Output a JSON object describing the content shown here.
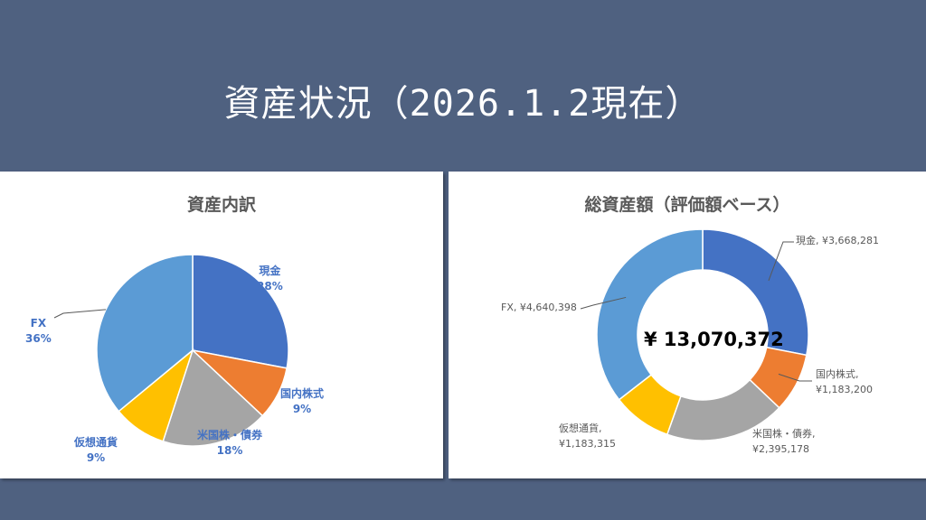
{
  "slide": {
    "title": "資産状況（2026.1.2現在）"
  },
  "colors": {
    "background": "#4f6180",
    "panel": "#ffffff",
    "label_blue": "#4472c4",
    "label_gray": "#595959",
    "leader": "#595959"
  },
  "chart_data": [
    {
      "type": "pie",
      "title": "資産内訳",
      "categories": [
        "現金",
        "国内株式",
        "米国株・債券",
        "仮想通貨",
        "FX"
      ],
      "values": [
        28,
        9,
        18,
        9,
        36
      ],
      "percent_labels": [
        "28%",
        "9%",
        "18%",
        "9%",
        "36%"
      ],
      "colors": [
        "#4472c4",
        "#ed7d31",
        "#a5a5a5",
        "#ffc000",
        "#5b9bd5"
      ],
      "legend": "none"
    },
    {
      "type": "pie",
      "subtype": "donut",
      "title": "総資産額（評価額ベース）",
      "categories": [
        "現金",
        "国内株式",
        "米国株・債券",
        "仮想通貨",
        "FX"
      ],
      "values": [
        3668281,
        1183200,
        2395178,
        1183315,
        4640398
      ],
      "value_labels": [
        "¥3,668,281",
        "¥1,183,200",
        "¥2,395,178",
        "¥1,183,315",
        "¥4,640,398"
      ],
      "center_label": "¥ 13,070,372",
      "colors": [
        "#4472c4",
        "#ed7d31",
        "#a5a5a5",
        "#ffc000",
        "#5b9bd5"
      ],
      "legend": "none"
    }
  ]
}
